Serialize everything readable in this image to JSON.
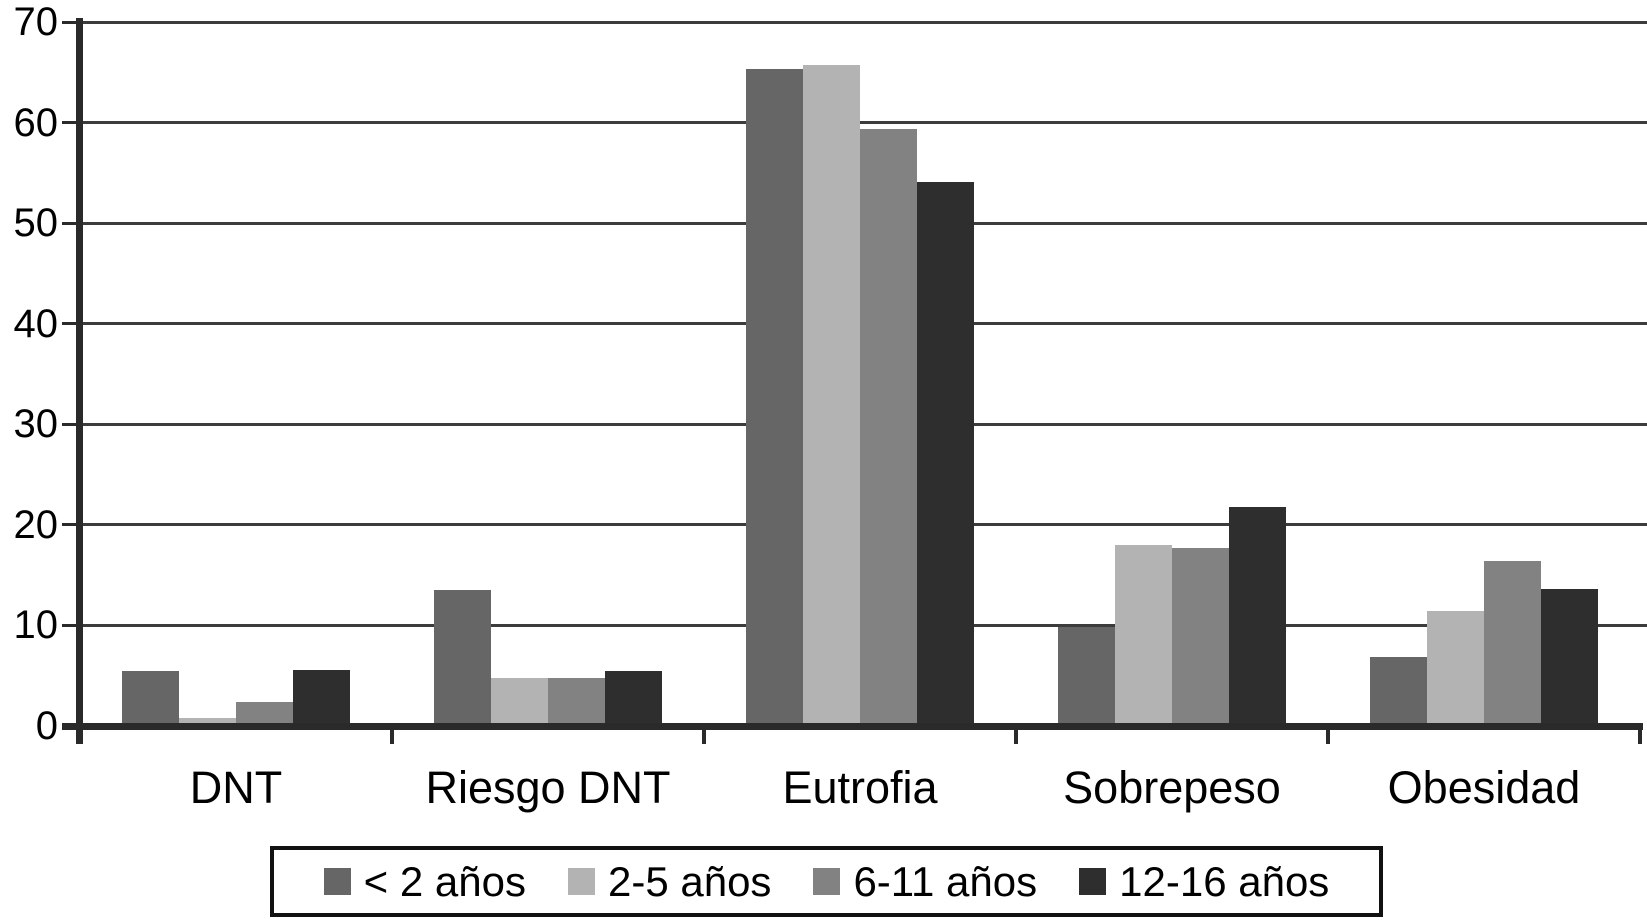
{
  "chart_data": {
    "type": "bar",
    "title": "",
    "categories": [
      "DNT",
      "Riesgo DNT",
      "Eutrofia",
      "Sobrepeso",
      "Obesidad"
    ],
    "series": [
      {
        "name": "< 2 años",
        "color": "#666666",
        "values": [
          5.5,
          13.5,
          65.3,
          9.8,
          6.9
        ]
      },
      {
        "name": "2-5 años",
        "color": "#b3b3b3",
        "values": [
          0.8,
          4.8,
          65.7,
          18.0,
          11.4
        ]
      },
      {
        "name": "6-11 años",
        "color": "#828282",
        "values": [
          2.4,
          4.8,
          59.4,
          17.7,
          16.4
        ]
      },
      {
        "name": "12-16 años",
        "color": "#2e2e2e",
        "values": [
          5.6,
          5.5,
          54.1,
          21.8,
          13.6
        ]
      }
    ],
    "xlabel": "",
    "ylabel": "",
    "ylim": [
      0,
      70
    ],
    "yticks": [
      0,
      10,
      20,
      30,
      40,
      50,
      60,
      70
    ],
    "grid": true,
    "legend_position": "bottom"
  },
  "colors": {
    "axis": "#2a2a2a",
    "grid": "#3c3c3c",
    "text": "#000000",
    "background": "#ffffff",
    "legend_border": "#111111"
  }
}
